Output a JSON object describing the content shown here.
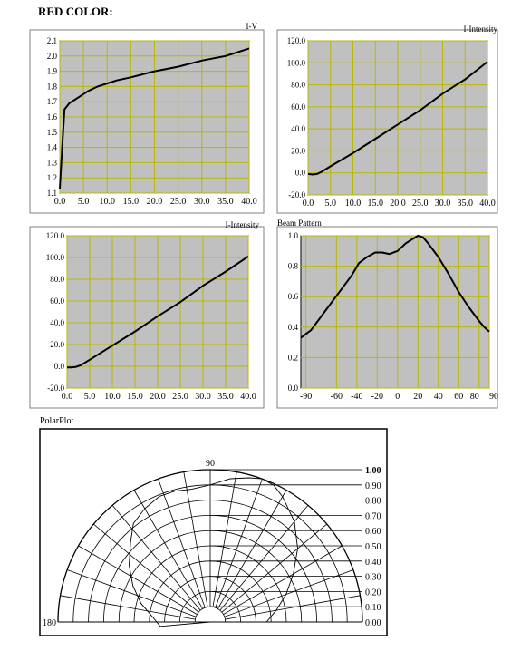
{
  "page": {
    "title": "RED COLOR:"
  },
  "colors": {
    "plot_bg": "#c0c0c0",
    "grid": "#b8b800",
    "frame": "#808080",
    "line": "#000000"
  },
  "chart_data": [
    {
      "type": "line",
      "title": "I-V",
      "xlim": [
        0,
        40
      ],
      "ylim": [
        1.1,
        2.1
      ],
      "xticks": [
        "0.0",
        "5.0",
        "10.0",
        "15.0",
        "20.0",
        "25.0",
        "30.0",
        "35.0",
        "40.0"
      ],
      "yticks": [
        "1.1",
        "1.2",
        "1.3",
        "1.4",
        "1.5",
        "1.6",
        "1.7",
        "1.8",
        "1.9",
        "2.0",
        "2.1"
      ],
      "series": [
        {
          "x": [
            0,
            0.5,
            1,
            2,
            4,
            6,
            8,
            10,
            12,
            15,
            20,
            25,
            30,
            35,
            40
          ],
          "y": [
            1.13,
            1.4,
            1.65,
            1.69,
            1.73,
            1.77,
            1.8,
            1.82,
            1.84,
            1.86,
            1.9,
            1.93,
            1.97,
            2.0,
            2.05
          ]
        }
      ]
    },
    {
      "type": "line",
      "title": "I-Intensity",
      "xlim": [
        0,
        40
      ],
      "ylim": [
        -20,
        120
      ],
      "xticks": [
        "0.0",
        "5.0",
        "10.0",
        "15.0",
        "20.0",
        "25.0",
        "30.0",
        "35.0",
        "40.0"
      ],
      "yticks": [
        "-20.0",
        "0.0",
        "20.0",
        "40.0",
        "60.0",
        "80.0",
        "100.0",
        "120.0"
      ],
      "series": [
        {
          "x": [
            0,
            1,
            2,
            3,
            5,
            10,
            15,
            20,
            25,
            30,
            35,
            40
          ],
          "y": [
            -1,
            -1.5,
            -1,
            1,
            6,
            18,
            31,
            44,
            57,
            72,
            85,
            101
          ]
        }
      ]
    },
    {
      "type": "line",
      "title": "I-Intensity",
      "xlim": [
        0,
        40
      ],
      "ylim": [
        -20,
        120
      ],
      "xticks": [
        "0.0",
        "5.0",
        "10.0",
        "15.0",
        "20.0",
        "25.0",
        "30.0",
        "35.0",
        "40.0"
      ],
      "yticks": [
        "-20.0",
        "0.0",
        "20.0",
        "40.0",
        "60.0",
        "80.0",
        "100.0",
        "120.0"
      ],
      "series": [
        {
          "x": [
            0,
            1,
            2,
            3,
            5,
            10,
            15,
            20,
            25,
            30,
            35,
            40
          ],
          "y": [
            -1,
            -1,
            -0.5,
            1,
            6,
            19,
            32,
            46,
            59,
            74,
            87,
            101
          ]
        }
      ]
    },
    {
      "type": "line",
      "title": "Beam Pattern",
      "xlim": [
        -95,
        90
      ],
      "ylim": [
        0,
        1.0
      ],
      "xticks_values": [
        -90,
        -60,
        -40,
        -20,
        0,
        20,
        40,
        60,
        80,
        90
      ],
      "xticks": [
        "-90",
        "-60",
        "-40",
        "-20",
        "0",
        "20",
        "40",
        "60",
        "80",
        "90"
      ],
      "yticks": [
        "0.0",
        "0.2",
        "0.4",
        "0.6",
        "0.8",
        "1.0"
      ],
      "series": [
        {
          "x": [
            -95,
            -85,
            -75,
            -65,
            -55,
            -45,
            -38,
            -30,
            -22,
            -15,
            -8,
            0,
            8,
            15,
            20,
            25,
            30,
            40,
            50,
            60,
            70,
            80,
            85,
            90
          ],
          "y": [
            0.33,
            0.38,
            0.47,
            0.56,
            0.65,
            0.74,
            0.82,
            0.86,
            0.89,
            0.89,
            0.88,
            0.9,
            0.95,
            0.98,
            1.0,
            0.99,
            0.95,
            0.86,
            0.75,
            0.63,
            0.53,
            0.44,
            0.4,
            0.37
          ]
        }
      ]
    },
    {
      "type": "polar",
      "title": "PolarPlot",
      "angle_labels": [
        "90",
        "180"
      ],
      "radial_labels": [
        "1.00",
        "0.90",
        "0.80",
        "0.70",
        "0.60",
        "0.50",
        "0.40",
        "0.30",
        "0.20",
        "0.10",
        "0.00"
      ],
      "series": [
        {
          "theta_deg": [
            -95,
            -85,
            -75,
            -65,
            -55,
            -45,
            -38,
            -30,
            -22,
            -15,
            -8,
            0,
            8,
            15,
            20,
            25,
            30,
            40,
            50,
            60,
            70,
            80,
            85,
            90
          ],
          "r": [
            0.33,
            0.38,
            0.47,
            0.56,
            0.65,
            0.74,
            0.82,
            0.86,
            0.89,
            0.89,
            0.88,
            0.9,
            0.95,
            0.98,
            1.0,
            0.99,
            0.95,
            0.86,
            0.75,
            0.63,
            0.53,
            0.44,
            0.4,
            0.37
          ]
        }
      ]
    }
  ]
}
